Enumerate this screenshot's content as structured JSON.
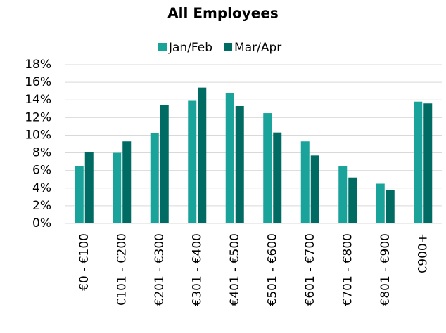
{
  "chart_data": {
    "type": "bar",
    "title": "All Employees",
    "categories": [
      "€0 - €100",
      "€101 - €200",
      "€201 - €300",
      "€301 - €400",
      "€401 - €500",
      "€501 - €600",
      "€601 - €700",
      "€701 - €800",
      "€801 - €900",
      "€900+"
    ],
    "series": [
      {
        "name": "Jan/Feb",
        "color": "#19a39a",
        "values": [
          6.5,
          8.0,
          10.2,
          13.9,
          14.8,
          12.5,
          9.3,
          6.5,
          4.5,
          13.8
        ]
      },
      {
        "name": "Mar/Apr",
        "color": "#006b63",
        "values": [
          8.1,
          9.3,
          13.4,
          15.4,
          13.3,
          10.3,
          7.7,
          5.2,
          3.8,
          13.6
        ]
      }
    ],
    "ylim": [
      0,
      18
    ],
    "yticks": [
      {
        "value": 0,
        "label": "0%"
      },
      {
        "value": 2,
        "label": "2%"
      },
      {
        "value": 4,
        "label": "4%"
      },
      {
        "value": 6,
        "label": "6%"
      },
      {
        "value": 8,
        "label": "8%"
      },
      {
        "value": 10,
        "label": "10%"
      },
      {
        "value": 12,
        "label": "12%"
      },
      {
        "value": 14,
        "label": "14%"
      },
      {
        "value": 16,
        "label": "16%"
      },
      {
        "value": 18,
        "label": "18%"
      }
    ],
    "grid": true,
    "legend": "top"
  }
}
